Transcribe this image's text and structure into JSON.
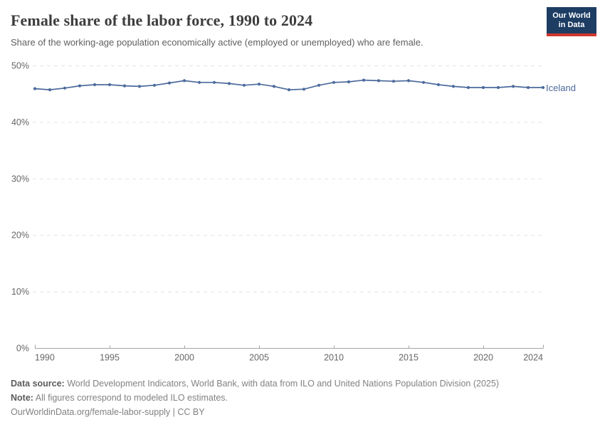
{
  "header": {
    "title": "Female share of the labor force, 1990 to 2024",
    "subtitle": "Share of the working-age population economically active (employed or unemployed) who are female.",
    "logo": {
      "line1": "Our World",
      "line2": "in Data"
    }
  },
  "chart_data": {
    "type": "line",
    "title": "Female share of the labor force, 1990 to 2024",
    "subtitle": "Share of the working-age population economically active (employed or unemployed) who are female.",
    "x": [
      1990,
      1991,
      1992,
      1993,
      1994,
      1995,
      1996,
      1997,
      1998,
      1999,
      2000,
      2001,
      2002,
      2003,
      2004,
      2005,
      2006,
      2007,
      2008,
      2009,
      2010,
      2011,
      2012,
      2013,
      2014,
      2015,
      2016,
      2017,
      2018,
      2019,
      2020,
      2021,
      2022,
      2023,
      2024
    ],
    "series": [
      {
        "name": "Iceland",
        "color": "#4c6a9c",
        "values": [
          45.9,
          45.7,
          46.0,
          46.4,
          46.6,
          46.6,
          46.4,
          46.3,
          46.5,
          46.9,
          47.3,
          47.0,
          47.0,
          46.8,
          46.5,
          46.7,
          46.3,
          45.7,
          45.8,
          46.5,
          47.0,
          47.1,
          47.4,
          47.3,
          47.2,
          47.3,
          47.0,
          46.6,
          46.3,
          46.1,
          46.1,
          46.1,
          46.3,
          46.1,
          46.1
        ]
      }
    ],
    "xlabel": "",
    "ylabel": "",
    "ylim": [
      0,
      50
    ],
    "yticks": [
      0,
      10,
      20,
      30,
      40,
      50
    ],
    "ytick_suffix": "%",
    "xticks": [
      1990,
      1995,
      2000,
      2005,
      2010,
      2015,
      2020,
      2024
    ],
    "grid": "horizontal-dashed",
    "legend_position": "end-of-line-label"
  },
  "footer": {
    "source_label": "Data source:",
    "source_text": " World Development Indicators, World Bank, with data from ILO and United Nations Population Division (2025)",
    "note_label": "Note:",
    "note_text": " All figures correspond to modeled ILO estimates.",
    "license_line": "OurWorldinData.org/female-labor-supply | CC BY"
  },
  "colors": {
    "line": "#4c6a9c",
    "grid": "#e3e3e3",
    "axis": "#a5a5a5",
    "tick_text": "#666666",
    "logo_bg": "#1d3d63",
    "logo_bar": "#d0362d"
  }
}
